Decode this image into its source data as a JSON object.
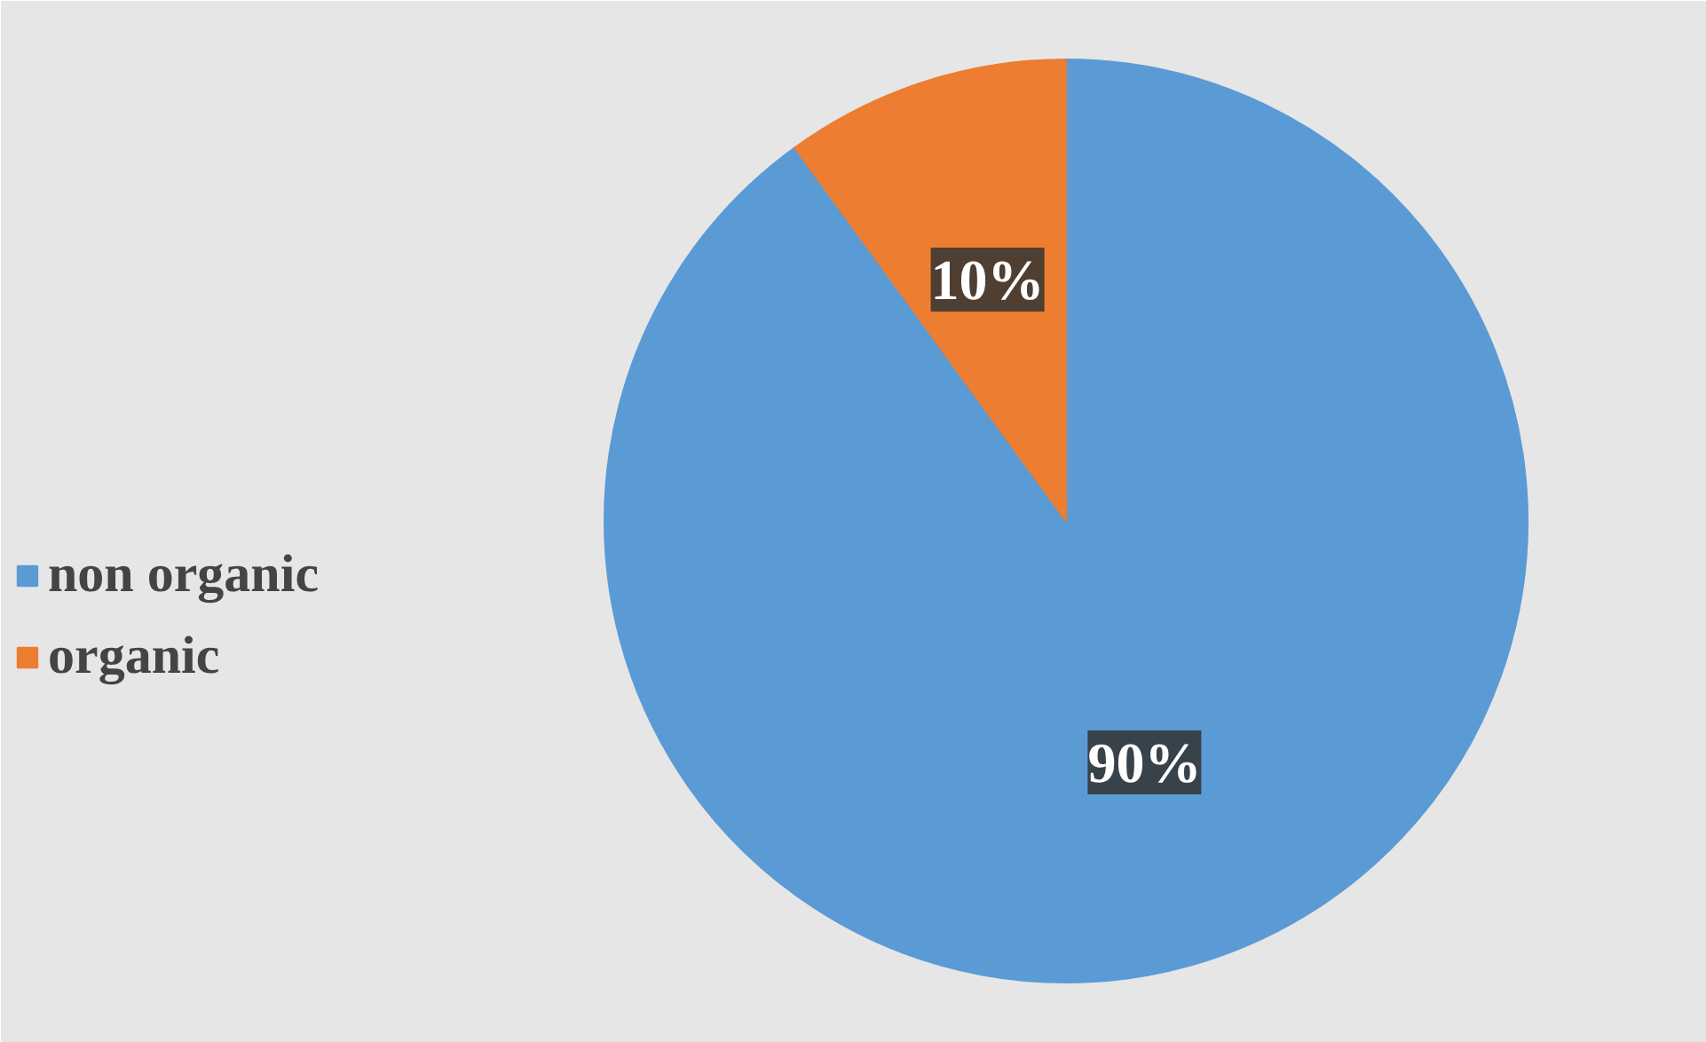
{
  "chart_data": {
    "type": "pie",
    "categories": [
      "non organic",
      "organic"
    ],
    "values": [
      90,
      10
    ],
    "colors": [
      "#5b9bd5",
      "#ed7d31"
    ],
    "value_labels": [
      "90%",
      "10%"
    ],
    "legend": "left"
  }
}
